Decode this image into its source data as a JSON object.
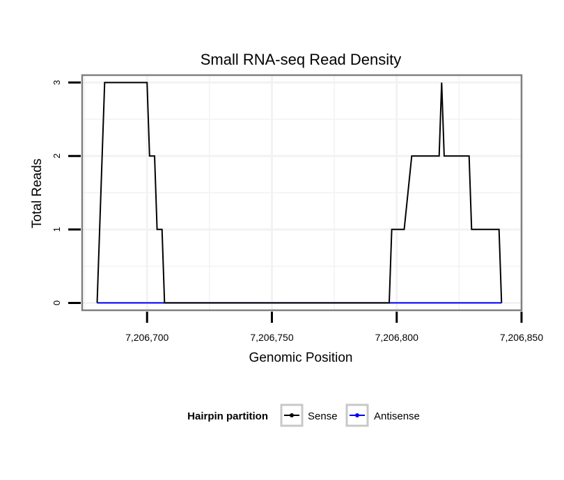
{
  "chart_data": {
    "type": "line",
    "title": "Small RNA-seq Read Density",
    "xlabel": "Genomic Position",
    "ylabel": "Total Reads",
    "xlim": [
      7206674,
      7206850
    ],
    "ylim": [
      -0.1,
      3.1
    ],
    "x_ticks": [
      7206700,
      7206750,
      7206800,
      7206850
    ],
    "x_tick_labels": [
      "7,206,700",
      "7,206,750",
      "7,206,800",
      "7,206,850"
    ],
    "y_ticks": [
      0,
      1,
      2,
      3
    ],
    "y_tick_labels": [
      "0",
      "1",
      "2",
      "3"
    ],
    "grid": true,
    "legend": {
      "title": "Hairpin partition",
      "placement": "bottom"
    },
    "series": [
      {
        "name": "Sense",
        "color": "#000000",
        "x": [
          7206680,
          7206683,
          7206700,
          7206701,
          7206703,
          7206704,
          7206706,
          7206707,
          7206772,
          7206797,
          7206798,
          7206803,
          7206806,
          7206817,
          7206818,
          7206819,
          7206820,
          7206829,
          7206830,
          7206841,
          7206842
        ],
        "y": [
          0,
          3,
          3,
          2,
          2,
          1,
          1,
          0,
          0,
          0,
          1,
          1,
          2,
          2,
          3,
          2,
          2,
          2,
          1,
          1,
          0
        ]
      },
      {
        "name": "Antisense",
        "color": "#0000ff",
        "x": [
          7206680,
          7206707,
          7206797,
          7206842
        ],
        "y": [
          0,
          0,
          0,
          0
        ]
      }
    ]
  }
}
